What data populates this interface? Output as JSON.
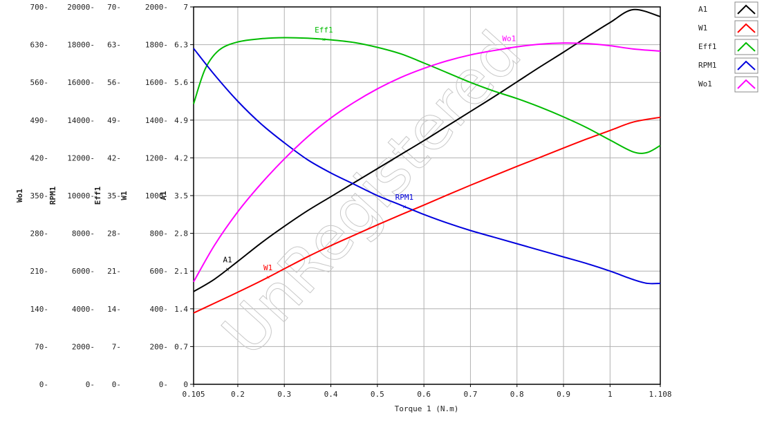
{
  "chart_data": {
    "type": "line",
    "xlabel": "Torque 1 (N.m)",
    "xlim": [
      0.105,
      1.108
    ],
    "x_ticks": [
      0.105,
      0.2,
      0.3,
      0.4,
      0.5,
      0.6,
      0.7,
      0.8,
      0.9,
      1,
      1.108
    ],
    "x_tick_labels": [
      "0.105",
      "0.2",
      "0.3",
      "0.4",
      "0.5",
      "0.6",
      "0.7",
      "0.8",
      "0.9",
      "1",
      "1.108"
    ],
    "grid": true,
    "legend_position": "right",
    "watermark": "UnRegistered",
    "y_axes": [
      {
        "label": "Wo1",
        "ticks": [
          "0",
          "70",
          "140",
          "210",
          "280",
          "350",
          "420",
          "490",
          "560",
          "630",
          "700"
        ],
        "ylim": [
          0,
          700
        ]
      },
      {
        "label": "RPM1",
        "ticks": [
          "0",
          "2000",
          "4000",
          "6000",
          "8000",
          "10000",
          "12000",
          "14000",
          "16000",
          "18000",
          "20000"
        ],
        "ylim": [
          0,
          20000
        ]
      },
      {
        "label": "Eff1",
        "ticks": [
          "0",
          "7",
          "14",
          "21",
          "28",
          "35",
          "42",
          "49",
          "56",
          "63",
          "70"
        ],
        "ylim": [
          0,
          70
        ]
      },
      {
        "label": "W1",
        "ticks": [
          "0",
          "200",
          "400",
          "600",
          "800",
          "1000",
          "1200",
          "1400",
          "1600",
          "1800",
          "2000"
        ],
        "ylim": [
          0,
          2000
        ]
      },
      {
        "label": "A1",
        "ticks": [
          "0",
          "0.7",
          "1.4",
          "2.1",
          "2.8",
          "3.5",
          "4.2",
          "4.9",
          "5.6",
          "6.3",
          "7"
        ],
        "ylim": [
          0,
          7
        ]
      }
    ],
    "series": [
      {
        "name": "A1",
        "color": "#000000",
        "axis": "A1",
        "marker": {
          "label": "A1",
          "x": 0.178
        },
        "x": [
          0.105,
          0.15,
          0.2,
          0.25,
          0.3,
          0.35,
          0.4,
          0.45,
          0.5,
          0.55,
          0.6,
          0.65,
          0.7,
          0.75,
          0.8,
          0.85,
          0.9,
          0.95,
          1.0,
          1.05,
          1.108
        ],
        "y": [
          1.72,
          1.95,
          2.28,
          2.62,
          2.93,
          3.22,
          3.48,
          3.74,
          4.0,
          4.26,
          4.52,
          4.79,
          5.06,
          5.33,
          5.61,
          5.89,
          6.16,
          6.44,
          6.71,
          6.95,
          6.82
        ]
      },
      {
        "name": "W1",
        "color": "#ff0000",
        "axis": "W1",
        "marker": {
          "label": "W1",
          "x": 0.265
        },
        "x": [
          0.105,
          0.15,
          0.2,
          0.25,
          0.3,
          0.35,
          0.4,
          0.45,
          0.5,
          0.55,
          0.6,
          0.65,
          0.7,
          0.75,
          0.8,
          0.85,
          0.9,
          0.95,
          1.0,
          1.05,
          1.108
        ],
        "y": [
          378,
          430,
          488,
          548,
          612,
          676,
          735,
          790,
          845,
          898,
          950,
          1003,
          1055,
          1105,
          1155,
          1203,
          1252,
          1300,
          1345,
          1390,
          1415
        ]
      },
      {
        "name": "Eff1",
        "color": "#00bb00",
        "axis": "Eff1",
        "marker": {
          "label": "Eff1",
          "x": 0.385
        },
        "x": [
          0.105,
          0.13,
          0.16,
          0.2,
          0.25,
          0.3,
          0.35,
          0.4,
          0.45,
          0.5,
          0.55,
          0.6,
          0.65,
          0.7,
          0.75,
          0.8,
          0.85,
          0.9,
          0.95,
          1.0,
          1.05,
          1.08,
          1.108
        ],
        "y": [
          52.0,
          58.5,
          62.0,
          63.5,
          64.1,
          64.3,
          64.2,
          63.9,
          63.4,
          62.5,
          61.3,
          59.6,
          57.8,
          56.0,
          54.4,
          53.0,
          51.4,
          49.6,
          47.6,
          45.3,
          43.1,
          43.0,
          44.3
        ]
      },
      {
        "name": "RPM1",
        "color": "#0000dd",
        "axis": "RPM1",
        "marker": {
          "label": "RPM1",
          "x": 0.558
        },
        "x": [
          0.105,
          0.15,
          0.2,
          0.25,
          0.3,
          0.35,
          0.4,
          0.45,
          0.5,
          0.55,
          0.6,
          0.65,
          0.7,
          0.75,
          0.8,
          0.85,
          0.9,
          0.95,
          1.0,
          1.05,
          1.08,
          1.108
        ],
        "y": [
          17800,
          16400,
          15000,
          13800,
          12800,
          11900,
          11200,
          10600,
          10000,
          9500,
          9000,
          8550,
          8150,
          7800,
          7450,
          7100,
          6750,
          6400,
          6000,
          5550,
          5350,
          5350
        ]
      },
      {
        "name": "Wo1",
        "color": "#ff00ff",
        "axis": "Wo1",
        "marker": {
          "label": "Wo1",
          "x": 0.783
        },
        "x": [
          0.105,
          0.15,
          0.2,
          0.25,
          0.3,
          0.35,
          0.4,
          0.45,
          0.5,
          0.55,
          0.6,
          0.65,
          0.7,
          0.75,
          0.8,
          0.85,
          0.9,
          0.95,
          1.0,
          1.05,
          1.108
        ],
        "y": [
          190,
          258,
          320,
          372,
          418,
          459,
          494,
          523,
          548,
          569,
          586,
          600,
          611,
          619,
          626,
          631,
          633,
          632,
          628,
          622,
          618
        ]
      }
    ]
  }
}
